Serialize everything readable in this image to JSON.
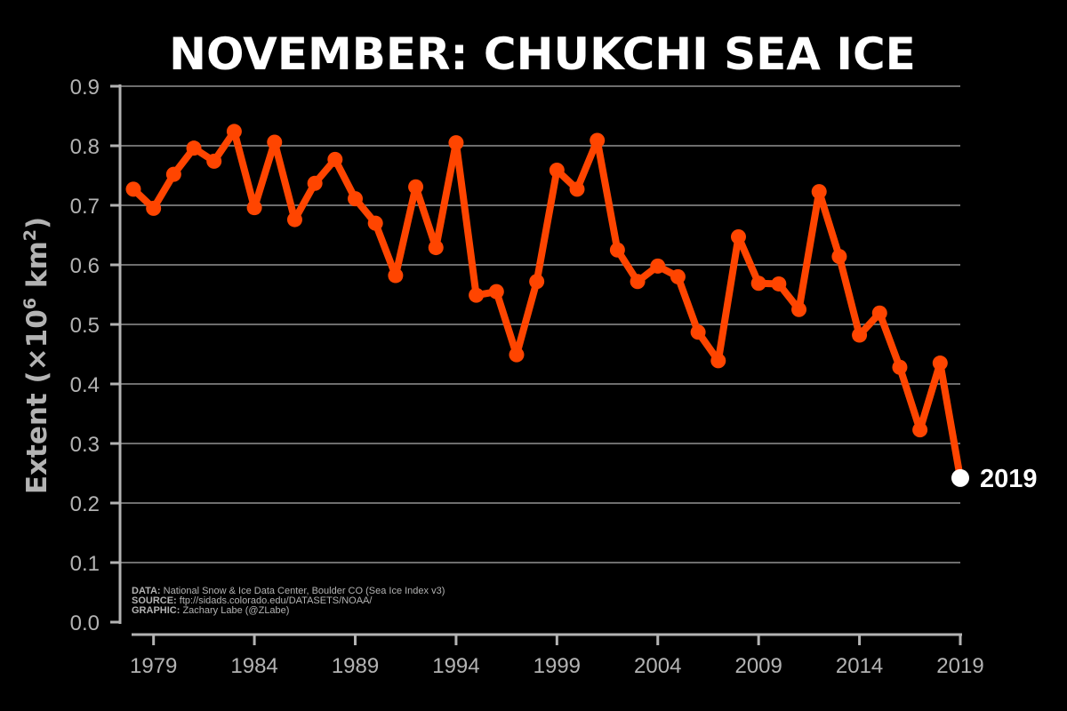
{
  "chart_data": {
    "type": "line",
    "title": "NOVEMBER: CHUKCHI SEA ICE",
    "ylabel": {
      "prefix": "Extent (",
      "times": "×",
      "ten": "10",
      "exp1": "6",
      "km": " km",
      "exp2": "2",
      "suffix": ")"
    },
    "xlim": [
      1978,
      2019
    ],
    "ylim": [
      0,
      0.9
    ],
    "x_ticks": [
      1979,
      1984,
      1989,
      1994,
      1999,
      2004,
      2009,
      2014,
      2019
    ],
    "y_ticks": [
      "0.0",
      "0.1",
      "0.2",
      "0.3",
      "0.4",
      "0.5",
      "0.6",
      "0.7",
      "0.8",
      "0.9"
    ],
    "grid": true,
    "x": [
      1978,
      1979,
      1980,
      1981,
      1982,
      1983,
      1984,
      1985,
      1986,
      1987,
      1988,
      1989,
      1990,
      1991,
      1992,
      1993,
      1994,
      1995,
      1996,
      1997,
      1998,
      1999,
      2000,
      2001,
      2002,
      2003,
      2004,
      2005,
      2006,
      2007,
      2008,
      2009,
      2010,
      2011,
      2012,
      2013,
      2014,
      2015,
      2016,
      2017,
      2018,
      2019
    ],
    "values": [
      0.727,
      0.695,
      0.752,
      0.796,
      0.774,
      0.824,
      0.696,
      0.806,
      0.676,
      0.737,
      0.777,
      0.711,
      0.67,
      0.582,
      0.731,
      0.629,
      0.805,
      0.549,
      0.555,
      0.449,
      0.572,
      0.759,
      0.727,
      0.809,
      0.625,
      0.572,
      0.598,
      0.58,
      0.487,
      0.439,
      0.647,
      0.569,
      0.568,
      0.525,
      0.723,
      0.614,
      0.482,
      0.519,
      0.428,
      0.323,
      0.435,
      0.242
    ],
    "line_color": "#ff4500",
    "highlight_color": "#ffffff",
    "annotation": {
      "label": "2019"
    },
    "credits": [
      {
        "key": "DATA:",
        "text": " National Snow & Ice Data Center, Boulder CO (Sea Ice Index v3)"
      },
      {
        "key": "SOURCE:",
        "text": " ftp://sidads.colorado.edu/DATASETS/NOAA/"
      },
      {
        "key": "GRAPHIC:",
        "text": " Zachary Labe (@ZLabe)"
      }
    ]
  }
}
